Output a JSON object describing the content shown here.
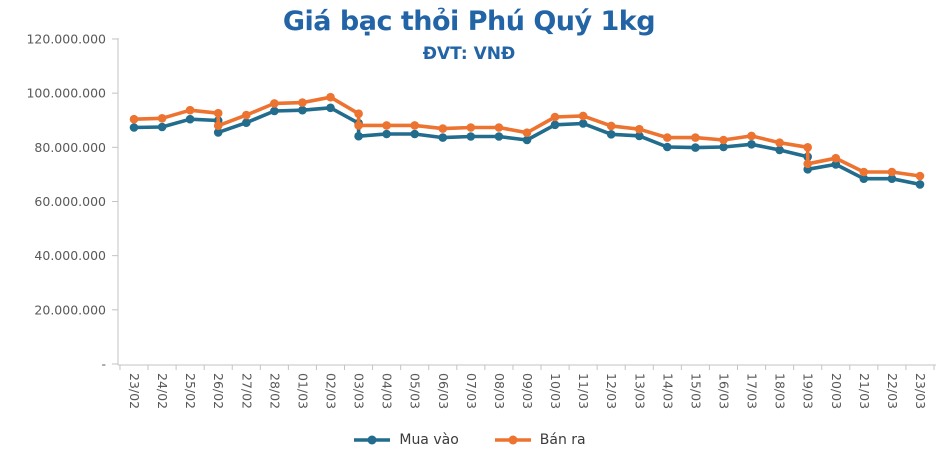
{
  "chart_data": {
    "type": "line",
    "title": "Giá bạc thỏi Phú Quý 1kg",
    "subtitle": "ĐVT: VNĐ",
    "title_color": "#2264A6",
    "grid": false,
    "legend_position": "bottom",
    "axis_color": "#C3C3C3",
    "axis_text_color": "#595959",
    "ylim": [
      0,
      120000000
    ],
    "y_axis": {
      "ticks": [
        {
          "label": "120.000.000",
          "value": 120000000
        },
        {
          "label": "100.000.000",
          "value": 100000000
        },
        {
          "label": "80.000.000",
          "value": 80000000
        },
        {
          "label": "60.000.000",
          "value": 60000000
        },
        {
          "label": "40.000.000",
          "value": 40000000
        },
        {
          "label": "20.000.000",
          "value": 20000000
        },
        {
          "label": "-",
          "value": 0
        }
      ]
    },
    "categories": [
      "23/02",
      "24/02",
      "25/02",
      "26/02",
      "27/02",
      "28/02",
      "01/03",
      "02/03",
      "03/03",
      "04/03",
      "05/03",
      "06/03",
      "07/03",
      "08/03",
      "09/03",
      "10/03",
      "11/03",
      "12/03",
      "13/03",
      "14/03",
      "15/03",
      "16/03",
      "17/03",
      "18/03",
      "19/03",
      "20/03",
      "21/03",
      "22/03",
      "23/03"
    ],
    "x_labels_rotation": 90,
    "series": [
      {
        "name": "Mua vào",
        "color": "#226C8E",
        "points": [
          {
            "c": 0,
            "v": 87300000
          },
          {
            "c": 1,
            "v": 87500000
          },
          {
            "c": 2,
            "v": 90400000
          },
          {
            "c": 3,
            "v": 89900000
          },
          {
            "c": 3,
            "v": 85500000
          },
          {
            "c": 4,
            "v": 89100000
          },
          {
            "c": 5,
            "v": 93400000
          },
          {
            "c": 6,
            "v": 93700000
          },
          {
            "c": 7,
            "v": 94600000
          },
          {
            "c": 8,
            "v": 88900000
          },
          {
            "c": 8,
            "v": 84100000
          },
          {
            "c": 9,
            "v": 84900000
          },
          {
            "c": 10,
            "v": 84900000
          },
          {
            "c": 11,
            "v": 83600000
          },
          {
            "c": 12,
            "v": 84000000
          },
          {
            "c": 13,
            "v": 84000000
          },
          {
            "c": 14,
            "v": 82700000
          },
          {
            "c": 15,
            "v": 88300000
          },
          {
            "c": 16,
            "v": 88800000
          },
          {
            "c": 17,
            "v": 84800000
          },
          {
            "c": 18,
            "v": 84200000
          },
          {
            "c": 19,
            "v": 80100000
          },
          {
            "c": 20,
            "v": 79900000
          },
          {
            "c": 21,
            "v": 80100000
          },
          {
            "c": 22,
            "v": 81100000
          },
          {
            "c": 23,
            "v": 79000000
          },
          {
            "c": 24,
            "v": 76500000
          },
          {
            "c": 24,
            "v": 71900000
          },
          {
            "c": 25,
            "v": 73700000
          },
          {
            "c": 26,
            "v": 68400000
          },
          {
            "c": 27,
            "v": 68400000
          },
          {
            "c": 28,
            "v": 66300000
          }
        ]
      },
      {
        "name": "Bán ra",
        "color": "#ED7331",
        "points": [
          {
            "c": 0,
            "v": 90400000
          },
          {
            "c": 1,
            "v": 90700000
          },
          {
            "c": 2,
            "v": 93700000
          },
          {
            "c": 3,
            "v": 92600000
          },
          {
            "c": 3,
            "v": 88000000
          },
          {
            "c": 4,
            "v": 91900000
          },
          {
            "c": 5,
            "v": 96200000
          },
          {
            "c": 6,
            "v": 96500000
          },
          {
            "c": 7,
            "v": 98500000
          },
          {
            "c": 8,
            "v": 92400000
          },
          {
            "c": 8,
            "v": 88100000
          },
          {
            "c": 9,
            "v": 88100000
          },
          {
            "c": 10,
            "v": 88100000
          },
          {
            "c": 11,
            "v": 86900000
          },
          {
            "c": 12,
            "v": 87300000
          },
          {
            "c": 13,
            "v": 87300000
          },
          {
            "c": 14,
            "v": 85400000
          },
          {
            "c": 15,
            "v": 91200000
          },
          {
            "c": 16,
            "v": 91600000
          },
          {
            "c": 17,
            "v": 87900000
          },
          {
            "c": 18,
            "v": 86700000
          },
          {
            "c": 19,
            "v": 83600000
          },
          {
            "c": 20,
            "v": 83600000
          },
          {
            "c": 21,
            "v": 82700000
          },
          {
            "c": 22,
            "v": 84200000
          },
          {
            "c": 23,
            "v": 81700000
          },
          {
            "c": 24,
            "v": 80000000
          },
          {
            "c": 24,
            "v": 73900000
          },
          {
            "c": 25,
            "v": 76000000
          },
          {
            "c": 26,
            "v": 70900000
          },
          {
            "c": 27,
            "v": 70900000
          },
          {
            "c": 28,
            "v": 69400000
          }
        ]
      }
    ]
  }
}
